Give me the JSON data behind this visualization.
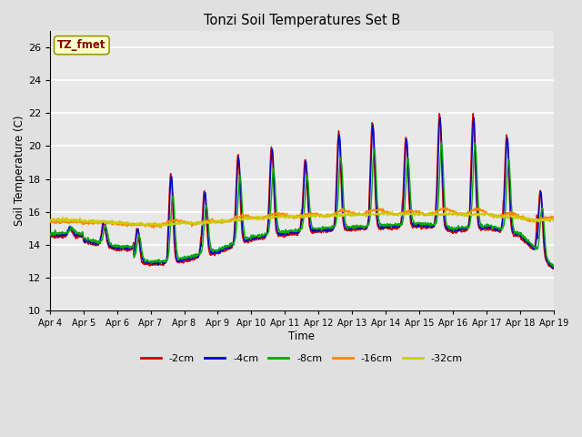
{
  "title": "Tonzi Soil Temperatures Set B",
  "xlabel": "Time",
  "ylabel": "Soil Temperature (C)",
  "annotation": "TZ_fmet",
  "ylim": [
    10,
    27
  ],
  "yticks": [
    10,
    12,
    14,
    16,
    18,
    20,
    22,
    24,
    26
  ],
  "xtick_labels": [
    "Apr 4",
    "Apr 5",
    "Apr 6",
    "Apr 7",
    "Apr 8",
    "Apr 9",
    "Apr 10",
    "Apr 11",
    "Apr 12",
    "Apr 13",
    "Apr 14",
    "Apr 15",
    "Apr 16",
    "Apr 17",
    "Apr 18",
    "Apr 19"
  ],
  "series_colors": {
    "-2cm": "#cc0000",
    "-4cm": "#0000cc",
    "-8cm": "#00aa00",
    "-16cm": "#ff8800",
    "-32cm": "#cccc00"
  },
  "series_order": [
    "-2cm",
    "-4cm",
    "-8cm",
    "-16cm",
    "-32cm"
  ],
  "bg_color": "#e0e0e0",
  "plot_bg_color": "#e8e8e8",
  "grid_color": "#ffffff",
  "annotation_bg": "#ffffcc",
  "annotation_border": "#999900",
  "annotation_text_color": "#880000",
  "figsize": [
    6.4,
    4.8
  ],
  "dpi": 100
}
